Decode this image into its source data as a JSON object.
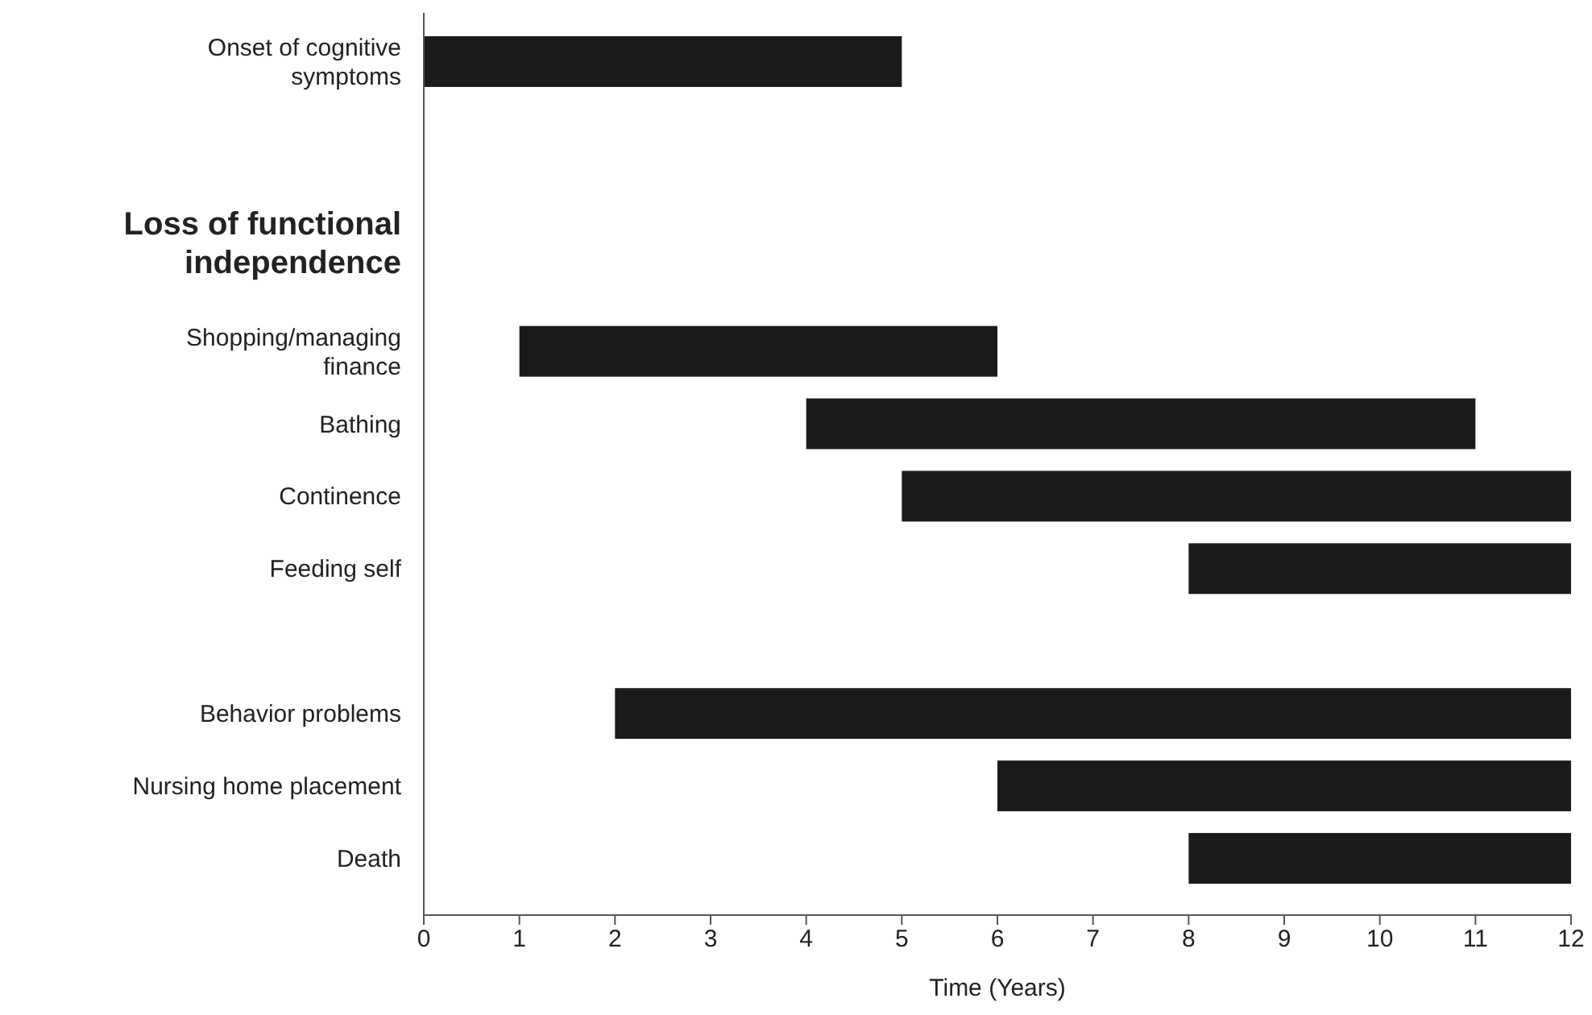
{
  "chart_data": {
    "type": "bar",
    "orientation": "horizontal",
    "categories": [
      "Onset of cognitive symptoms",
      null,
      "Loss of functional independence",
      null,
      "Shopping/managing finance",
      "Bathing",
      "Continence",
      "Feeding self",
      null,
      "Behavior problems",
      "Nursing home placement",
      "Death"
    ],
    "values": [
      5,
      null,
      null,
      null,
      5,
      7,
      7,
      4,
      null,
      10,
      6,
      4
    ],
    "base": [
      0,
      null,
      null,
      null,
      1,
      4,
      5,
      8,
      null,
      2,
      6,
      8
    ],
    "color": "#1a1a1a",
    "xlim": [
      0,
      12
    ],
    "xticks": [
      0,
      1,
      2,
      3,
      4,
      5,
      6,
      7,
      8,
      9,
      10,
      11,
      12
    ],
    "xlabel": "Time (Years)",
    "grid": false
  }
}
